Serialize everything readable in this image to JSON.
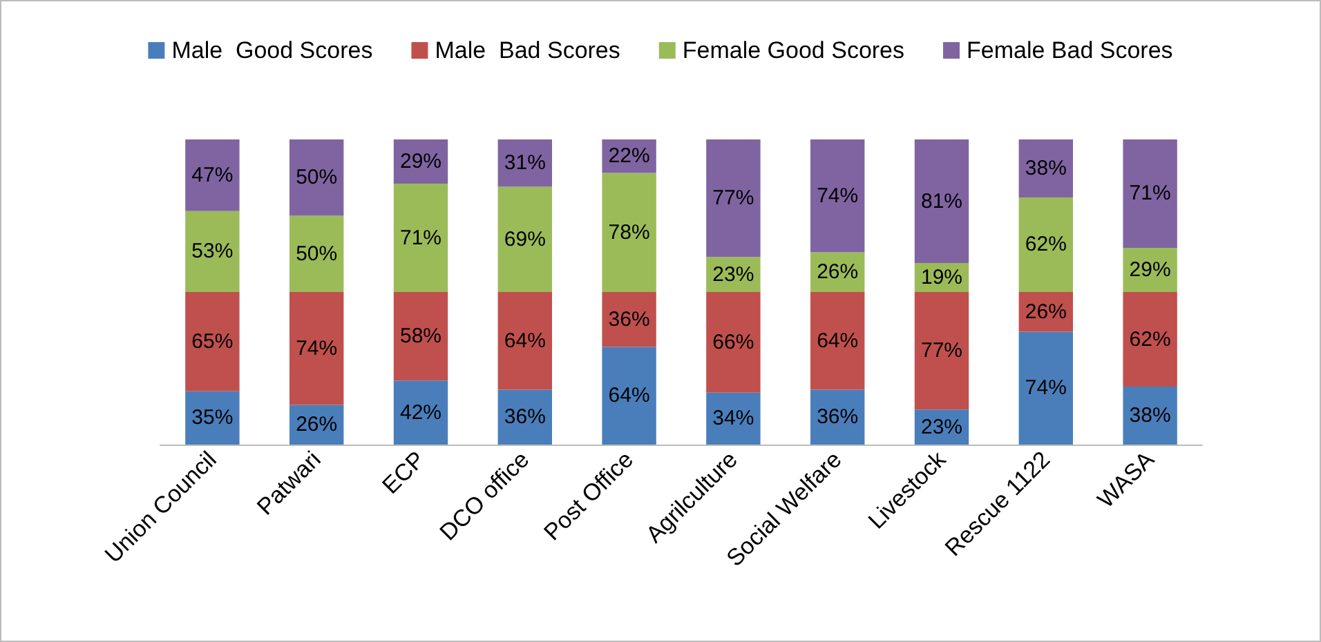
{
  "chart_data": {
    "type": "bar",
    "stacked": true,
    "legend": "top",
    "categories": [
      "Union Council",
      "Patwari",
      "ECP",
      "DCO office",
      "Post Office",
      "Agrilculture",
      "Social Welfare",
      "Livestock",
      "Rescue 1122",
      "WASA"
    ],
    "series": [
      {
        "name": "Male  Good Scores",
        "color": "#4a7ebb",
        "values": [
          35,
          26,
          42,
          36,
          64,
          34,
          36,
          23,
          74,
          38
        ],
        "value_labels": [
          "35%",
          "26%",
          "42%",
          "36%",
          "64%",
          "34%",
          "36%",
          "23%",
          "74%",
          "38%"
        ]
      },
      {
        "name": "Male  Bad Scores",
        "color": "#c0504d",
        "values": [
          65,
          74,
          58,
          64,
          36,
          66,
          64,
          77,
          26,
          62
        ],
        "value_labels": [
          "65%",
          "74%",
          "58%",
          "64%",
          "36%",
          "66%",
          "64%",
          "77%",
          "26%",
          "62%"
        ]
      },
      {
        "name": "Female Good Scores",
        "color": "#9bbb59",
        "values": [
          53,
          50,
          71,
          69,
          78,
          23,
          26,
          19,
          62,
          29
        ],
        "value_labels": [
          "53%",
          "50%",
          "71%",
          "69%",
          "78%",
          "23%",
          "26%",
          "19%",
          "62%",
          "29%"
        ]
      },
      {
        "name": "Female Bad Scores",
        "color": "#8064a2",
        "values": [
          47,
          50,
          29,
          31,
          22,
          77,
          74,
          81,
          38,
          71
        ],
        "value_labels": [
          "47%",
          "50%",
          "29%",
          "31%",
          "22%",
          "77%",
          "74%",
          "81%",
          "38%",
          "71%"
        ]
      }
    ]
  }
}
